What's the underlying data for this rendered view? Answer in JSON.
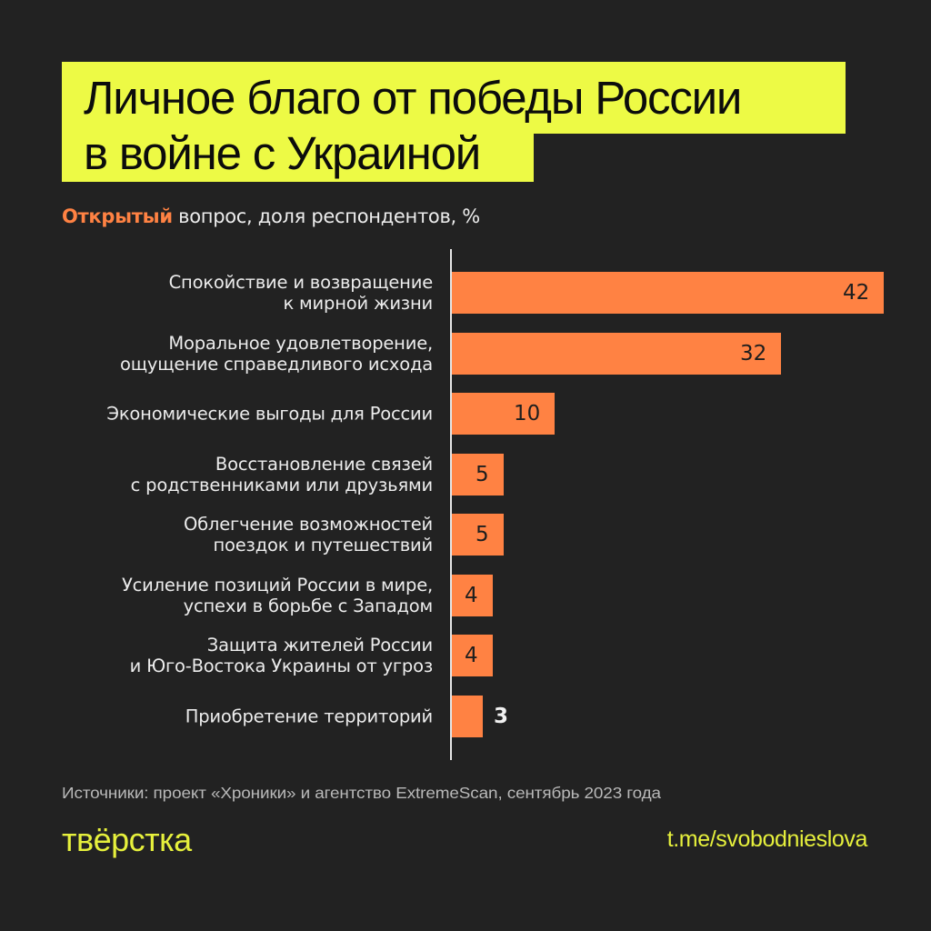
{
  "title": {
    "line1": "Личное благо от победы России",
    "line2": "в войне с Украиной",
    "background_color": "#EDFA45"
  },
  "subtitle": {
    "accent": "Открытый",
    "rest": " вопрос, доля респондентов, %",
    "accent_color": "#FF8243"
  },
  "chart_data": {
    "type": "bar",
    "orientation": "horizontal",
    "title": "Личное благо от победы России в войне с Украиной",
    "subtitle": "Открытый вопрос, доля респондентов, %",
    "xlabel": "",
    "ylabel": "",
    "unit": "%",
    "grid": false,
    "legend": null,
    "bar_color": "#FF8243",
    "xlim": [
      0,
      42
    ],
    "categories": [
      "Спокойствие и возвращение к мирной жизни",
      "Моральное удовлетворение, ощущение справедливого исхода",
      "Экономические выгоды для России",
      "Восстановление связей с родственниками или друзьями",
      "Облегчение возможностей поездок и путешествий",
      "Усиление позиций России в мире, успехи в борьбе с Западом",
      "Защита жителей России и Юго-Востока Украины от угроз",
      "Приобретение территорий"
    ],
    "values": [
      42,
      32,
      10,
      5,
      5,
      4,
      4,
      3
    ]
  },
  "rows": [
    {
      "label_line1": "Спокойствие и возвращение",
      "label_line2": "к мирной жизни",
      "value": "42"
    },
    {
      "label_line1": "Моральное удовлетворение,",
      "label_line2": "ощущение справедливого исхода",
      "value": "32"
    },
    {
      "label_line1": "Экономические выгоды для России",
      "label_line2": "",
      "value": "10"
    },
    {
      "label_line1": "Восстановление связей",
      "label_line2": "с родственниками или друзьями",
      "value": "5"
    },
    {
      "label_line1": "Облегчение возможностей",
      "label_line2": "поездок и путешествий",
      "value": "5"
    },
    {
      "label_line1": "Усиление позиций России в мире,",
      "label_line2": "успехи в борьбе с Западом",
      "value": "4"
    },
    {
      "label_line1": "Защита жителей России",
      "label_line2": "и Юго-Востока Украины от угроз",
      "value": "4"
    },
    {
      "label_line1": "Приобретение территорий",
      "label_line2": "",
      "value": "3"
    }
  ],
  "footer": {
    "source": "Источники: проект «Хроники» и агентство ExtremeScan, сентябрь 2023 года",
    "logo": "твёрстка",
    "channel": "t.me/svobodnieslova"
  }
}
